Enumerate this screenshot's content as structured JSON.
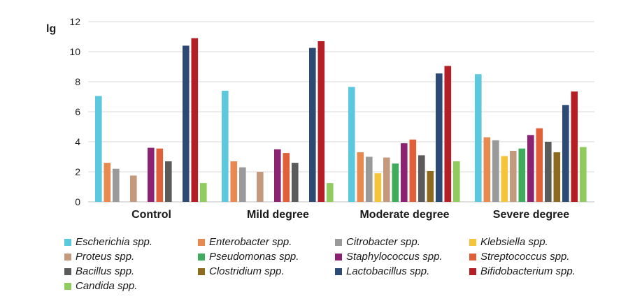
{
  "chart_data": {
    "type": "bar",
    "ylabel": "lg",
    "ylim": [
      0,
      12
    ],
    "yticks": [
      "0",
      "2",
      "4",
      "6",
      "8",
      "10",
      "12"
    ],
    "grid": true,
    "legend_position": "bottom",
    "categories": [
      "Control",
      "Mild degree",
      "Moderate degree",
      "Severe degree"
    ],
    "series": [
      {
        "name": "Escherichia spp.",
        "color": "#5bc8de",
        "values": [
          7.05,
          7.4,
          7.65,
          8.5
        ]
      },
      {
        "name": "Enterobacter spp.",
        "color": "#e8894f",
        "values": [
          2.6,
          2.7,
          3.3,
          4.3
        ]
      },
      {
        "name": "Citrobacter spp.",
        "color": "#9a9a9a",
        "values": [
          2.2,
          2.3,
          3.0,
          4.1
        ]
      },
      {
        "name": "Klebsiella spp.",
        "color": "#f5c43a",
        "values": [
          null,
          null,
          1.9,
          3.05
        ]
      },
      {
        "name": "Proteus spp.",
        "color": "#c49a7e",
        "values": [
          1.75,
          2.0,
          2.95,
          3.4
        ]
      },
      {
        "name": "Pseudomonas spp.",
        "color": "#3fac5c",
        "values": [
          null,
          null,
          2.55,
          3.55
        ]
      },
      {
        "name": "Staphylococcus spp.",
        "color": "#8b2272",
        "values": [
          3.6,
          3.5,
          3.9,
          4.45
        ]
      },
      {
        "name": "Streptococcus spp.",
        "color": "#e0603a",
        "values": [
          3.55,
          3.25,
          4.15,
          4.9
        ]
      },
      {
        "name": "Bacillus spp.",
        "color": "#5b5b5b",
        "values": [
          2.7,
          2.6,
          3.1,
          4.0
        ]
      },
      {
        "name": "Clostridium spp.",
        "color": "#8c6b1e",
        "values": [
          null,
          null,
          2.05,
          3.3
        ]
      },
      {
        "name": "Lactobacillus spp.",
        "color": "#2c4a73",
        "values": [
          10.4,
          10.25,
          8.55,
          6.45
        ]
      },
      {
        "name": "Bifidobacterium spp.",
        "color": "#b31f24",
        "values": [
          10.9,
          10.7,
          9.05,
          7.35
        ]
      },
      {
        "name": "Candida spp.",
        "color": "#8fcc5d",
        "values": [
          1.25,
          1.25,
          2.7,
          3.65
        ]
      }
    ]
  }
}
